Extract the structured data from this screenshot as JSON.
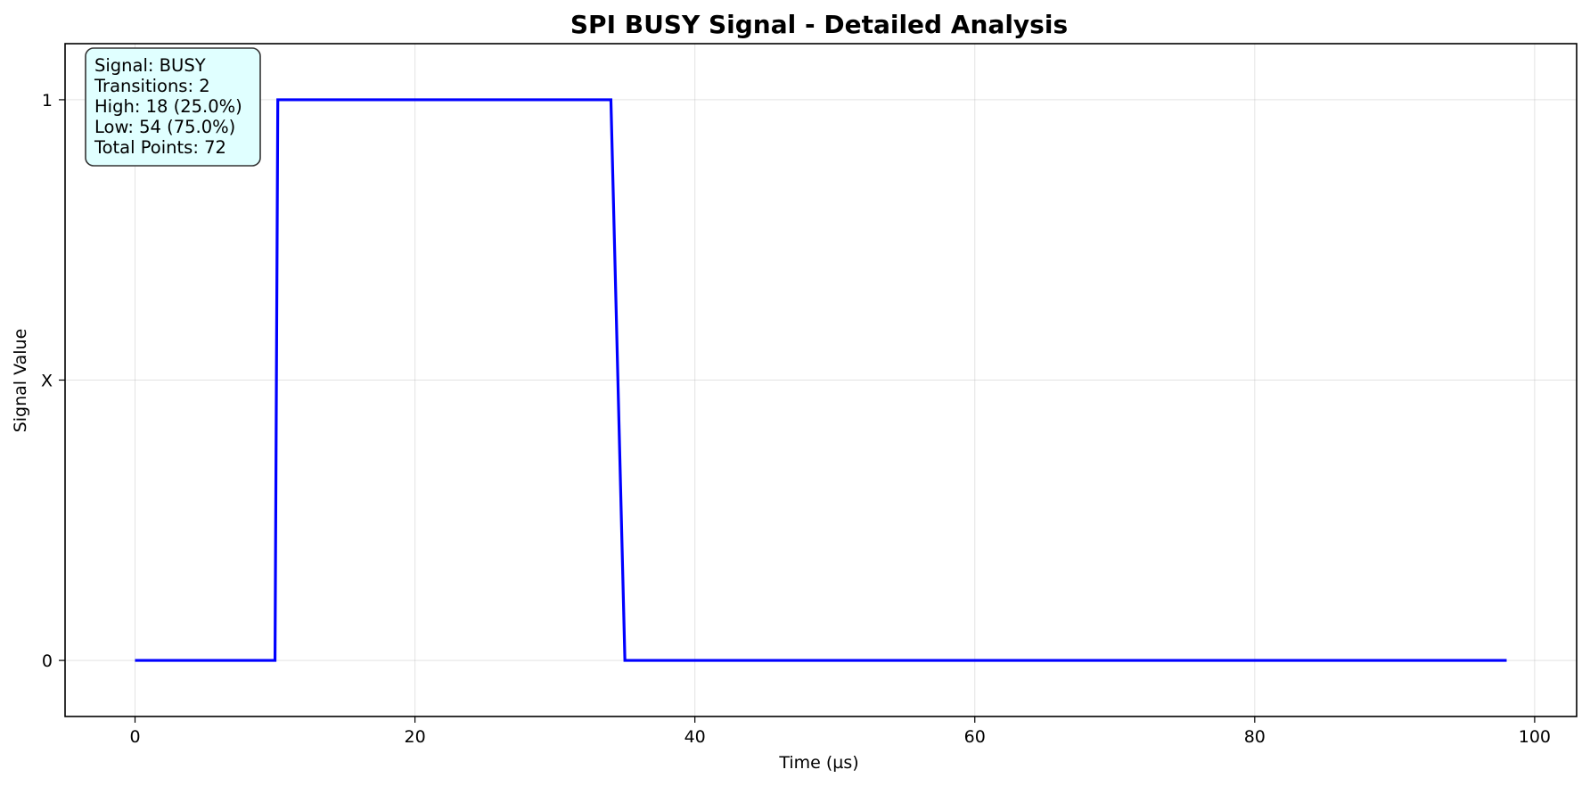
{
  "chart_data": {
    "type": "line",
    "title": "SPI BUSY Signal - Detailed Analysis",
    "xlabel": "Time (µs)",
    "ylabel": "Signal Value",
    "xlim": [
      -5,
      103
    ],
    "ylim": [
      -0.2,
      2.2
    ],
    "x_ticks": [
      0,
      20,
      40,
      60,
      80,
      100
    ],
    "x_tick_labels": [
      "0",
      "20",
      "40",
      "60",
      "80",
      "100"
    ],
    "y_ticks": [
      0,
      1,
      2
    ],
    "y_tick_labels": [
      "0",
      "X",
      "1"
    ],
    "grid": true,
    "series": [
      {
        "color": "#0000ff",
        "x": [
          0,
          10,
          10.2,
          34,
          35,
          98
        ],
        "y": [
          0,
          0,
          2,
          2,
          0,
          0
        ]
      }
    ],
    "info_box": {
      "lines": [
        "Signal: BUSY",
        "Transitions: 2",
        "High: 18 (25.0%)",
        "Low: 54 (75.0%)",
        "Total Points: 72"
      ],
      "background": "#e0ffff",
      "placement": "top-left"
    }
  }
}
